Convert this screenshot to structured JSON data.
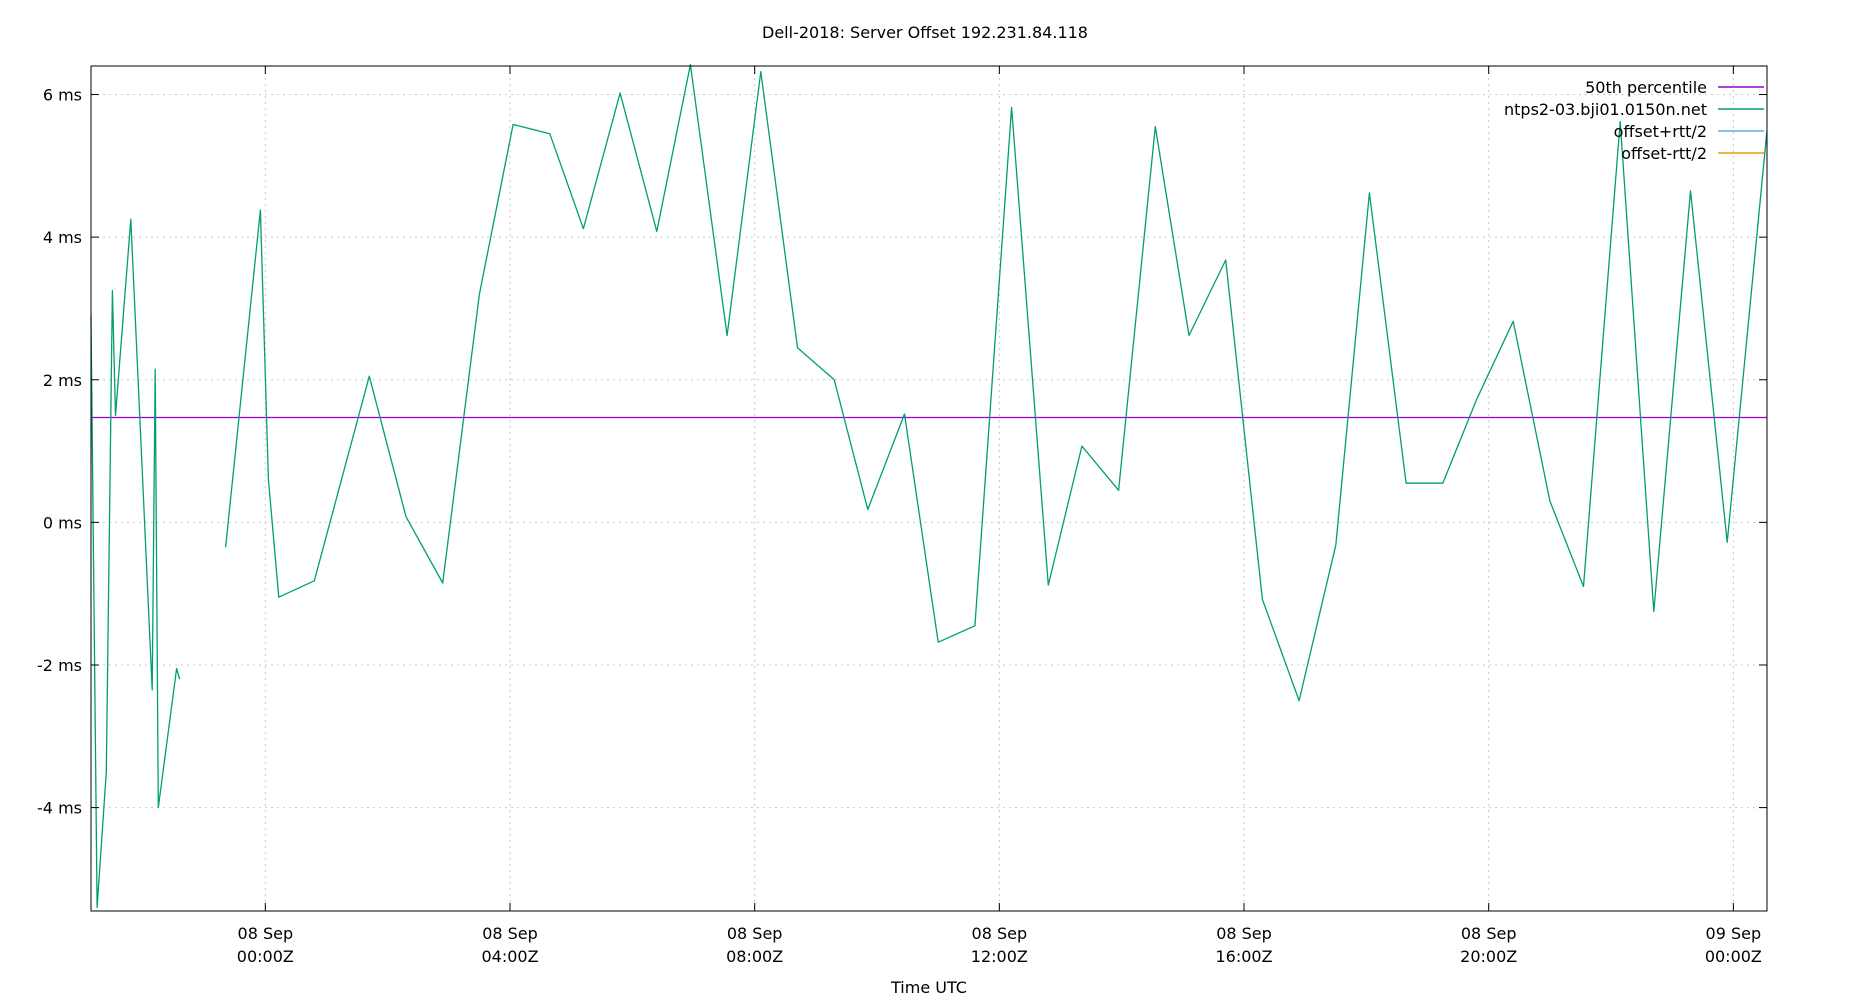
{
  "chart_data": {
    "type": "line",
    "title": "Dell-2018: Server Offset 192.231.84.118",
    "xlabel": "Time UTC",
    "ylabel": "",
    "x_unit": "hours since 08 Sep 00:00Z",
    "xlim": [
      -2.85,
      24.55
    ],
    "ylim": [
      -5.45,
      6.4
    ],
    "grid": true,
    "legend_position": "top-right",
    "x_ticks": [
      {
        "value": 0,
        "line1": "08 Sep",
        "line2": "00:00Z"
      },
      {
        "value": 4,
        "line1": "08 Sep",
        "line2": "04:00Z"
      },
      {
        "value": 8,
        "line1": "08 Sep",
        "line2": "08:00Z"
      },
      {
        "value": 12,
        "line1": "08 Sep",
        "line2": "12:00Z"
      },
      {
        "value": 16,
        "line1": "08 Sep",
        "line2": "16:00Z"
      },
      {
        "value": 20,
        "line1": "08 Sep",
        "line2": "20:00Z"
      },
      {
        "value": 24,
        "line1": "09 Sep",
        "line2": "00:00Z"
      }
    ],
    "y_ticks": [
      {
        "value": 6,
        "label": "6 ms"
      },
      {
        "value": 4,
        "label": "4 ms"
      },
      {
        "value": 2,
        "label": "2 ms"
      },
      {
        "value": 0,
        "label": "0 ms"
      },
      {
        "value": -2,
        "label": "-2 ms"
      },
      {
        "value": -4,
        "label": "-4 ms"
      }
    ],
    "series": [
      {
        "name": "50th percentile",
        "color": "#9400d3",
        "points": [
          [
            -2.85,
            1.47
          ],
          [
            24.55,
            1.47
          ]
        ]
      },
      {
        "name": "ntps2-03.bji01.0150n.net",
        "color": "#009e73",
        "segments": [
          [
            [
              -2.85,
              2.9
            ],
            [
              -2.75,
              -5.4
            ],
            [
              -2.6,
              -3.5
            ],
            [
              -2.5,
              3.25
            ],
            [
              -2.45,
              1.5
            ],
            [
              -2.2,
              4.25
            ],
            [
              -1.85,
              -2.35
            ],
            [
              -1.8,
              2.15
            ],
            [
              -1.75,
              -4.0
            ],
            [
              -1.45,
              -2.05
            ],
            [
              -1.4,
              -2.2
            ]
          ],
          [
            [
              -0.65,
              -0.35
            ],
            [
              -0.08,
              4.38
            ],
            [
              0.05,
              0.6
            ],
            [
              0.22,
              -1.05
            ],
            [
              0.8,
              -0.82
            ],
            [
              1.7,
              2.05
            ],
            [
              2.3,
              0.08
            ],
            [
              2.9,
              -0.85
            ],
            [
              3.5,
              3.2
            ],
            [
              4.05,
              5.58
            ],
            [
              4.65,
              5.45
            ],
            [
              5.2,
              4.12
            ],
            [
              5.8,
              6.02
            ],
            [
              6.4,
              4.08
            ],
            [
              6.95,
              6.42
            ],
            [
              7.55,
              2.62
            ],
            [
              8.1,
              6.32
            ],
            [
              8.7,
              2.45
            ],
            [
              9.3,
              2.0
            ],
            [
              9.85,
              0.18
            ],
            [
              10.45,
              1.52
            ],
            [
              11.0,
              -1.68
            ],
            [
              11.6,
              -1.45
            ],
            [
              12.2,
              5.82
            ],
            [
              12.8,
              -0.88
            ],
            [
              13.35,
              1.07
            ],
            [
              13.95,
              0.45
            ],
            [
              14.55,
              5.55
            ],
            [
              15.1,
              2.62
            ],
            [
              15.7,
              3.68
            ],
            [
              16.3,
              -1.08
            ],
            [
              16.9,
              -2.5
            ],
            [
              17.5,
              -0.32
            ],
            [
              18.05,
              4.62
            ],
            [
              18.65,
              0.55
            ],
            [
              19.25,
              0.55
            ],
            [
              19.8,
              1.72
            ],
            [
              20.4,
              2.82
            ],
            [
              21.0,
              0.3
            ],
            [
              21.55,
              -0.9
            ],
            [
              22.15,
              5.62
            ],
            [
              22.7,
              -1.25
            ],
            [
              23.3,
              4.65
            ],
            [
              23.9,
              -0.28
            ],
            [
              24.55,
              5.5
            ]
          ]
        ]
      },
      {
        "name": "offset+rtt/2",
        "color": "#56b4e9",
        "segments": []
      },
      {
        "name": "offset-rtt/2",
        "color": "#e69f00",
        "segments": []
      }
    ]
  }
}
